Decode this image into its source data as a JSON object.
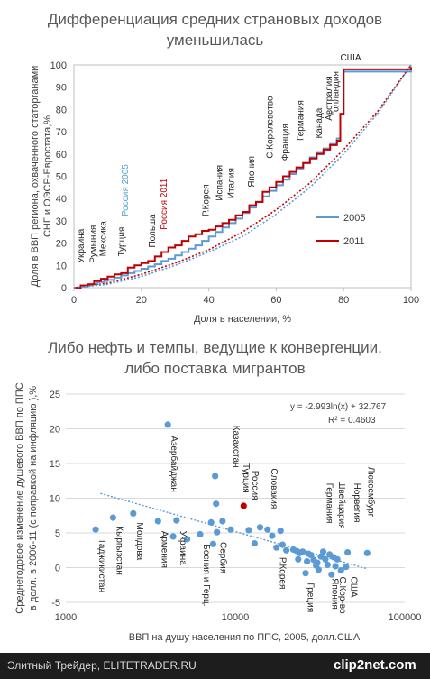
{
  "chart_data": [
    {
      "type": "line",
      "title_line1": "Дифференциация средних страновых доходов",
      "title_line2": "уменьшилась",
      "xlabel": "Доля в населении, %",
      "ylabel_line1": "Доля в ВВП региона, охваченного статорганами",
      "ylabel_line2": "СНГ и ОЭСР-Евростата,%",
      "xlim": [
        0,
        100
      ],
      "ylim": [
        0,
        100
      ],
      "x_ticks": [
        "0",
        "20",
        "40",
        "60",
        "80",
        "100"
      ],
      "y_ticks": [
        "0",
        "10",
        "20",
        "30",
        "40",
        "50",
        "60",
        "70",
        "80",
        "90",
        "100"
      ],
      "legend_position": "right",
      "series": [
        {
          "name": "2005",
          "color": "#5b9bd5",
          "x": [
            0,
            2,
            4,
            5,
            7,
            9,
            10,
            12,
            14,
            16,
            18,
            20,
            22,
            24,
            26,
            28,
            30,
            32,
            34,
            36,
            38,
            40,
            42,
            44,
            46,
            48,
            50,
            52,
            54,
            56,
            58,
            60,
            62,
            64,
            66,
            68,
            70,
            72,
            74,
            76,
            78,
            79,
            80,
            100
          ],
          "y": [
            0,
            0.5,
            1,
            1.5,
            2.5,
            3,
            3.5,
            4.5,
            5.5,
            6.5,
            7.5,
            8.5,
            9.5,
            10.5,
            12,
            13,
            14.5,
            16,
            17.5,
            19,
            21,
            23,
            25,
            27,
            29,
            31,
            33.5,
            36,
            38.5,
            41,
            43.5,
            46,
            48.5,
            51,
            53.5,
            56,
            58.5,
            60.5,
            62.5,
            64.5,
            67,
            78,
            97,
            99
          ]
        },
        {
          "name": "2011",
          "color": "#c00000",
          "x": [
            0,
            2,
            4,
            6,
            8,
            10,
            12,
            14,
            16,
            18,
            20,
            22,
            24,
            26,
            28,
            30,
            32,
            34,
            36,
            38,
            40,
            42,
            44,
            46,
            48,
            50,
            52,
            54,
            56,
            58,
            60,
            62,
            64,
            66,
            68,
            70,
            72,
            74,
            76,
            78,
            79,
            80,
            100
          ],
          "y": [
            0,
            1,
            1.5,
            3,
            4,
            5,
            6,
            6.5,
            9,
            10,
            11,
            12,
            14,
            16,
            18,
            19,
            21,
            23,
            24,
            25.5,
            26,
            27.5,
            29,
            30.5,
            32.5,
            34,
            37,
            38.5,
            43,
            45,
            47.5,
            50,
            52,
            54,
            56,
            58,
            60,
            62,
            64,
            66,
            78,
            98,
            99
          ]
        },
        {
          "name": "",
          "color": "#c00000",
          "dotted": true,
          "x": [
            0,
            10,
            20,
            30,
            40,
            50,
            60,
            70,
            80,
            90,
            100
          ],
          "y": [
            0,
            2,
            6,
            11,
            17,
            25,
            35,
            47,
            62,
            79,
            100
          ]
        },
        {
          "name": "",
          "color": "#5b9bd5",
          "dotted": true,
          "x": [
            0,
            10,
            20,
            30,
            40,
            50,
            60,
            70,
            80,
            90,
            100
          ],
          "y": [
            0,
            1.5,
            5,
            10,
            16,
            23,
            33,
            45,
            60,
            78,
            100
          ]
        }
      ],
      "annotations": [
        {
          "text": "Украина",
          "x": 3,
          "y": 11,
          "color": "#262626"
        },
        {
          "text": "Румыния",
          "x": 6.5,
          "y": 11,
          "color": "#262626"
        },
        {
          "text": "Мексика",
          "x": 9.5,
          "y": 14,
          "color": "#262626"
        },
        {
          "text": "Турция",
          "x": 15,
          "y": 14,
          "color": "#262626"
        },
        {
          "text": "Россия 2005",
          "x": 16,
          "y": 32,
          "color": "#4f9fd0"
        },
        {
          "text": "Польша",
          "x": 24,
          "y": 18,
          "color": "#262626"
        },
        {
          "text": "Россия 2011",
          "x": 27.5,
          "y": 26,
          "color": "#c00000"
        },
        {
          "text": "Р.Корея",
          "x": 40,
          "y": 32,
          "color": "#262626"
        },
        {
          "text": "Испания",
          "x": 44,
          "y": 39,
          "color": "#262626"
        },
        {
          "text": "Италия",
          "x": 47.5,
          "y": 40,
          "color": "#262626"
        },
        {
          "text": "Япония",
          "x": 53.5,
          "y": 45,
          "color": "#262626"
        },
        {
          "text": "С.Королевство",
          "x": 59,
          "y": 58,
          "color": "#262626"
        },
        {
          "text": "Франция",
          "x": 63.5,
          "y": 57,
          "color": "#262626"
        },
        {
          "text": "Германия",
          "x": 68,
          "y": 66,
          "color": "#262626"
        },
        {
          "text": "Канада",
          "x": 73.5,
          "y": 67,
          "color": "#262626"
        },
        {
          "text": "Австралия",
          "x": 76.5,
          "y": 75,
          "color": "#262626"
        },
        {
          "text": "Голландия",
          "x": 78.5,
          "y": 77,
          "color": "#262626"
        },
        {
          "text": "США",
          "x": 79,
          "y": 102,
          "color": "#262626",
          "horizontal": true
        }
      ]
    },
    {
      "type": "scatter",
      "title_line1": "Либо нефть и темпы, ведущие к конвергенции,",
      "title_line2": "либо поставка мигрантов",
      "xlabel": "ВВП на душу населения по ППС, 2005, долл.США",
      "ylabel_line1": "Среднегодовое изменение душевого ВВП по ППС",
      "ylabel_line2": "в долл. в 2006-11 (с поправкой на инфляцию ),%",
      "x_scale": "log",
      "xlim": [
        1000,
        100000
      ],
      "ylim": [
        -5,
        25
      ],
      "x_ticks": [
        "1000",
        "10000",
        "100000"
      ],
      "y_ticks": [
        "-5",
        "0",
        "5",
        "10",
        "15",
        "20",
        "25"
      ],
      "trendline": {
        "equation": "y = -2.993ln(x) + 32.767",
        "r2": "R² = 0.4603",
        "a": -2.993,
        "b": 32.767,
        "x_range": [
          1600,
          60000
        ]
      },
      "points": [
        {
          "x": 1500,
          "y": 5.5
        },
        {
          "x": 1900,
          "y": 7.2
        },
        {
          "x": 2500,
          "y": 7.8
        },
        {
          "x": 3500,
          "y": 6.7
        },
        {
          "x": 4000,
          "y": 20.6
        },
        {
          "x": 4500,
          "y": 6.8
        },
        {
          "x": 4300,
          "y": 4.5
        },
        {
          "x": 5200,
          "y": 4.1
        },
        {
          "x": 6200,
          "y": 4.8
        },
        {
          "x": 7200,
          "y": 6.5
        },
        {
          "x": 7600,
          "y": 13.2
        },
        {
          "x": 7700,
          "y": 9.2
        },
        {
          "x": 7400,
          "y": 3.4
        },
        {
          "x": 7800,
          "y": 5.1
        },
        {
          "x": 8400,
          "y": 6.7
        },
        {
          "x": 9400,
          "y": 5.5
        },
        {
          "x": 12000,
          "y": 5.4
        },
        {
          "x": 13000,
          "y": 3.5
        },
        {
          "x": 14000,
          "y": 5.8
        },
        {
          "x": 15500,
          "y": 5.5
        },
        {
          "x": 16500,
          "y": 4.6
        },
        {
          "x": 17500,
          "y": 2.9
        },
        {
          "x": 18500,
          "y": 5.3
        },
        {
          "x": 19000,
          "y": 3.3
        },
        {
          "x": 20000,
          "y": 2.5
        },
        {
          "x": 22000,
          "y": 2.6
        },
        {
          "x": 23000,
          "y": 2.4
        },
        {
          "x": 24000,
          "y": 2.1
        },
        {
          "x": 23500,
          "y": 1.2
        },
        {
          "x": 25000,
          "y": 2.3
        },
        {
          "x": 26000,
          "y": -0.8
        },
        {
          "x": 26500,
          "y": 0.9
        },
        {
          "x": 27000,
          "y": 2.0
        },
        {
          "x": 28000,
          "y": 1.8
        },
        {
          "x": 29000,
          "y": 1.1
        },
        {
          "x": 30000,
          "y": 0.3
        },
        {
          "x": 30500,
          "y": 0.7
        },
        {
          "x": 31000,
          "y": -0.3
        },
        {
          "x": 32000,
          "y": 1.6
        },
        {
          "x": 33000,
          "y": 2.3
        },
        {
          "x": 34000,
          "y": 1.2
        },
        {
          "x": 35000,
          "y": 0.4
        },
        {
          "x": 36000,
          "y": 1.9
        },
        {
          "x": 37000,
          "y": -1.0
        },
        {
          "x": 38000,
          "y": 1.5
        },
        {
          "x": 39000,
          "y": 0.2
        },
        {
          "x": 40000,
          "y": 1.2
        },
        {
          "x": 42000,
          "y": -0.4
        },
        {
          "x": 45000,
          "y": 0.1
        },
        {
          "x": 46000,
          "y": 2.2
        },
        {
          "x": 60000,
          "y": 2.1
        },
        {
          "x": 11200,
          "y": 8.9,
          "color": "#c00000"
        }
      ],
      "annotations": [
        {
          "text": "Таджикистан",
          "x": 1500,
          "y": 4.2
        },
        {
          "text": "Кыргызстан",
          "x": 1900,
          "y": 6.0
        },
        {
          "text": "Молдова",
          "x": 2500,
          "y": 6.5
        },
        {
          "text": "Армения",
          "x": 3500,
          "y": 5.3
        },
        {
          "text": "Азербайджан",
          "x": 4000,
          "y": 19.0
        },
        {
          "text": "Украина",
          "x": 4500,
          "y": 5.3
        },
        {
          "text": "Босния и Герц.",
          "x": 6200,
          "y": 3.4
        },
        {
          "text": "Сербия",
          "x": 7800,
          "y": 3.7
        },
        {
          "text": "Казахстан",
          "x": 9300,
          "y": 20.5
        },
        {
          "text": "Турция",
          "x": 10600,
          "y": 15.0
        },
        {
          "text": "Россия",
          "x": 12000,
          "y": 14.0
        },
        {
          "text": "Словакия",
          "x": 15500,
          "y": 14.3
        },
        {
          "text": "Р.Корея",
          "x": 17500,
          "y": 1.5
        },
        {
          "text": "Греция",
          "x": 25500,
          "y": -2.2
        },
        {
          "text": "Германия",
          "x": 33000,
          "y": 12.2
        },
        {
          "text": "Швейцария",
          "x": 39000,
          "y": 12.5
        },
        {
          "text": "С.Кор-во",
          "x": 39500,
          "y": -1.3
        },
        {
          "text": "Япония",
          "x": 35500,
          "y": -1.5
        },
        {
          "text": "США",
          "x": 46000,
          "y": -1.3
        },
        {
          "text": "Норвегия",
          "x": 48000,
          "y": 12.2
        },
        {
          "text": "Люксембург",
          "x": 58000,
          "y": 14.5
        }
      ]
    }
  ],
  "footer": {
    "left_text": "Элитный Трейдер, ELITETRADER.RU",
    "logo": "clip2net.com"
  }
}
